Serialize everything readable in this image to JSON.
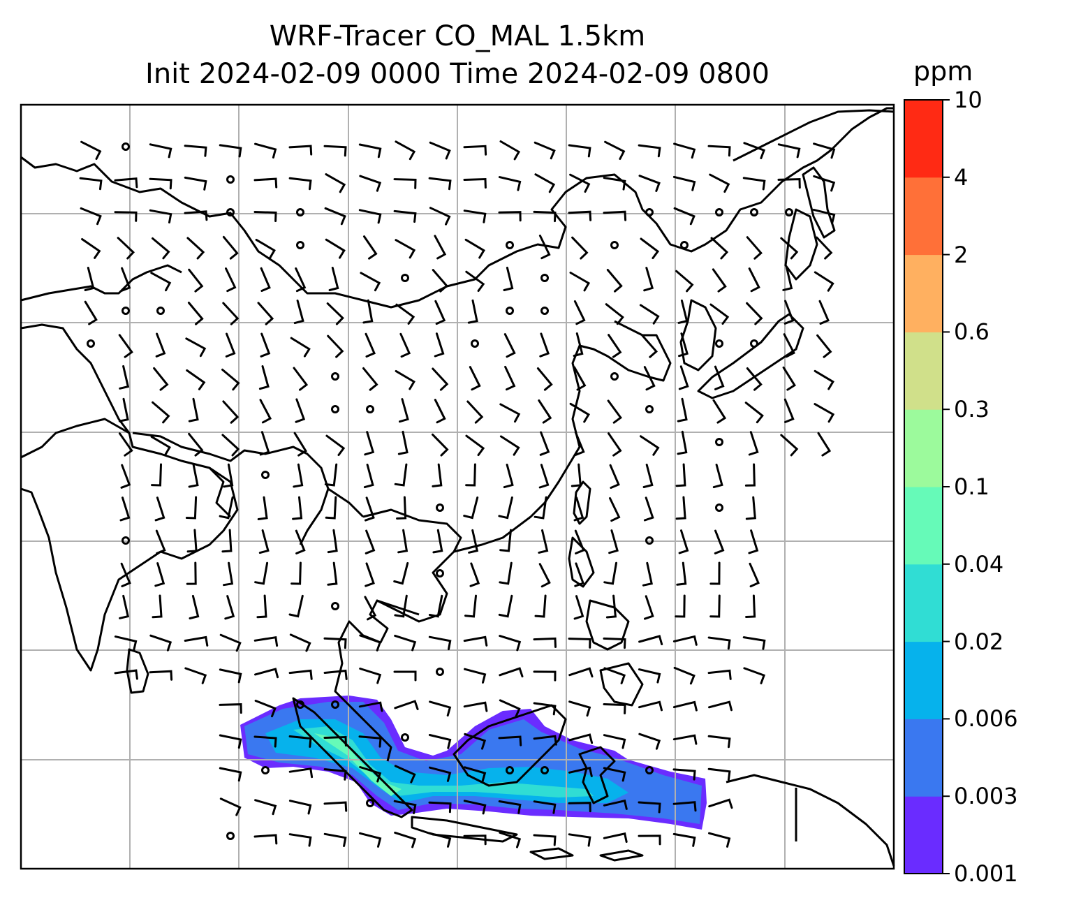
{
  "title_line1": "WRF-Tracer CO_MAL 1.5km",
  "title_line2": "Init 2024-02-09 0000 Time 2024-02-09 0800",
  "colorbar": {
    "unit": "ppm",
    "ticks": [
      "0.001",
      "0.003",
      "0.006",
      "0.02",
      "0.04",
      "0.1",
      "0.3",
      "0.6",
      "2",
      "4",
      "10"
    ],
    "colors": [
      "#6a2cff",
      "#3a78f0",
      "#06b2ec",
      "#30ddd4",
      "#66fab8",
      "#9cfa9c",
      "#d0e08a",
      "#ffb060",
      "#ff7038",
      "#ff2a14"
    ]
  },
  "map": {
    "gridlines": true,
    "features": [
      "coastlines",
      "country-borders",
      "wind-barbs",
      "tracer-concentration-field"
    ]
  }
}
